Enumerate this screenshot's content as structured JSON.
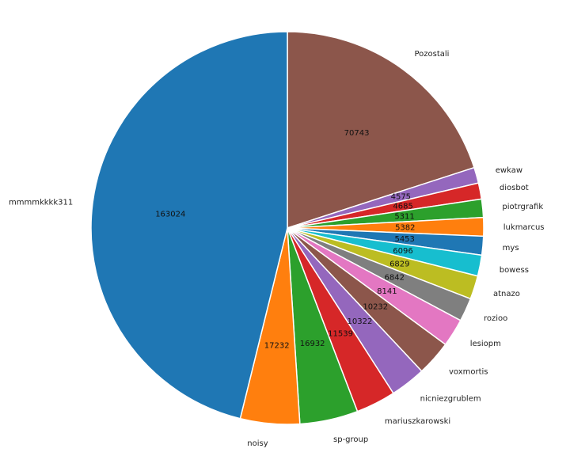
{
  "chart_data": {
    "type": "pie",
    "title": "",
    "start_angle_deg": 90,
    "direction": "clockwise",
    "slices": [
      {
        "label": "Pozostali",
        "value": 70743,
        "color": "#8c564b"
      },
      {
        "label": "ewkaw",
        "value": 4575,
        "color": "#9467bd"
      },
      {
        "label": "diosbot",
        "value": 4685,
        "color": "#d62728"
      },
      {
        "label": "piotrgrafik",
        "value": 5311,
        "color": "#2ca02c"
      },
      {
        "label": "lukmarcus",
        "value": 5382,
        "color": "#ff7f0e"
      },
      {
        "label": "mys",
        "value": 5453,
        "color": "#1f77b4"
      },
      {
        "label": "bowess",
        "value": 6096,
        "color": "#17becf"
      },
      {
        "label": "atnazo",
        "value": 6829,
        "color": "#bcbd22"
      },
      {
        "label": "rozioo",
        "value": 6842,
        "color": "#7f7f7f"
      },
      {
        "label": "lesiopm",
        "value": 8141,
        "color": "#e377c2"
      },
      {
        "label": "voxmortis",
        "value": 10232,
        "color": "#8c564b"
      },
      {
        "label": "nicniezgrublem",
        "value": 10322,
        "color": "#9467bd"
      },
      {
        "label": "mariuszkarowski",
        "value": 11539,
        "color": "#d62728"
      },
      {
        "label": "sp-group",
        "value": 16932,
        "color": "#2ca02c"
      },
      {
        "label": "noisy",
        "value": 17232,
        "color": "#ff7f0e"
      },
      {
        "label": "mmmmkkkk311",
        "value": 163024,
        "color": "#1f77b4"
      }
    ]
  }
}
